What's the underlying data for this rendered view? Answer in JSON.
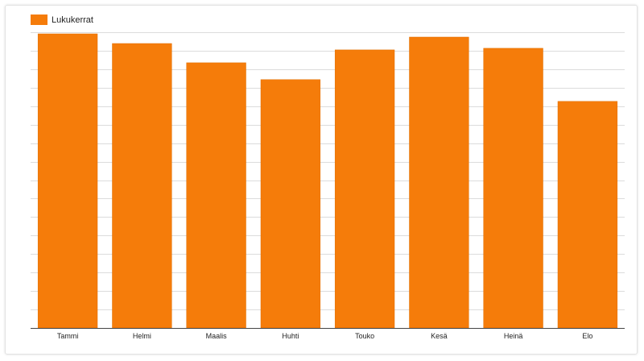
{
  "colors": {
    "bar": "#f57c0a",
    "bar_border": "#e06f00",
    "grid": "#dcdcdc",
    "axis": "#444444"
  },
  "chart_data": {
    "type": "bar",
    "categories": [
      "Tammi",
      "Helmi",
      "Maalis",
      "Huhti",
      "Touko",
      "Kesä",
      "Heinä",
      "Elo"
    ],
    "series": [
      {
        "name": "Lukukerrat",
        "values": [
          366,
          354,
          330,
          309,
          346,
          362,
          348,
          282
        ]
      }
    ],
    "xlabel": "",
    "ylabel": "",
    "ylim": [
      0,
      368
    ],
    "grid": true,
    "gridline_step": 23,
    "legend": "top-left"
  }
}
